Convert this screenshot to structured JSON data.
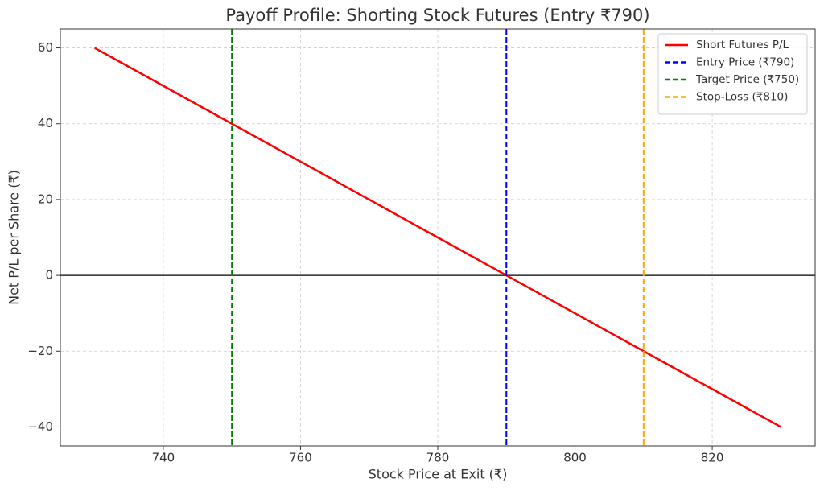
{
  "chart_data": {
    "type": "line",
    "title": "Payoff Profile: Shorting Stock Futures (Entry ₹790)",
    "x_label": "Stock Price at Exit (₹)",
    "y_label": "Net P/L per Share (₹)",
    "series": [
      {
        "name": "Short Futures P/L",
        "color": "#ff0000",
        "x": [
          730,
          740,
          750,
          760,
          770,
          780,
          790,
          800,
          810,
          820,
          830
        ],
        "values": [
          60,
          50,
          40,
          30,
          20,
          10,
          0,
          -10,
          -20,
          -30,
          -40
        ]
      }
    ],
    "vlines": [
      {
        "name": "Entry Price (₹790)",
        "x": 790,
        "color": "#0000ff"
      },
      {
        "name": "Target Price (₹750)",
        "x": 750,
        "color": "#008000"
      },
      {
        "name": "Stop-Loss (₹810)",
        "x": 810,
        "color": "#ffa500"
      }
    ],
    "hlines": [
      {
        "y": 0,
        "color": "#000000"
      }
    ],
    "xlim": [
      725,
      835
    ],
    "xticks": [
      740,
      760,
      780,
      800,
      820
    ],
    "ylim": [
      -45,
      65
    ],
    "yticks": [
      {
        "value": -40,
        "label": "−40"
      },
      {
        "value": -20,
        "label": "−20"
      },
      0,
      20,
      40,
      60
    ],
    "grid": true,
    "legend": "upper right"
  }
}
